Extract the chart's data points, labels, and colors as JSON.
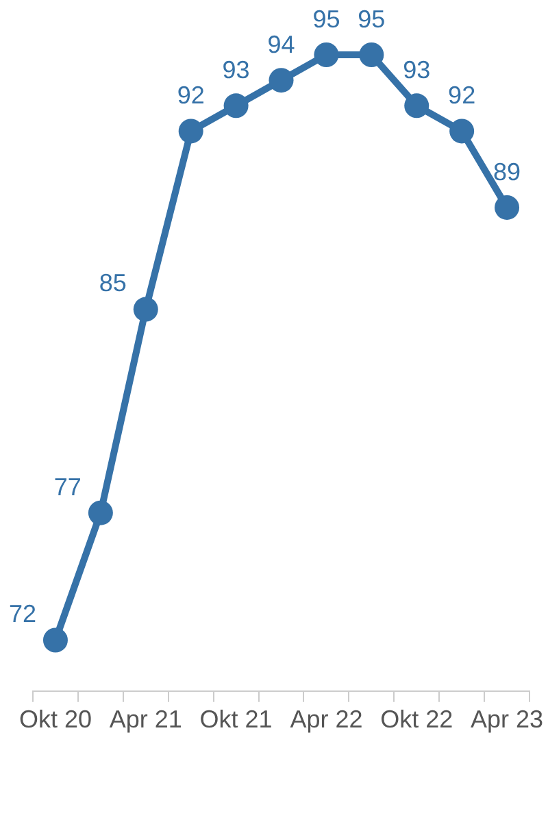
{
  "chart_data": {
    "type": "line",
    "categories": [
      "Okt 20",
      null,
      "Apr 21",
      null,
      "Okt 21",
      null,
      "Apr 22",
      null,
      "Okt 22",
      null,
      "Apr 23"
    ],
    "series": [
      {
        "color": "#3672a8",
        "values": [
          72,
          77,
          85,
          92,
          93,
          94,
          95,
          95,
          93,
          92,
          89
        ]
      }
    ],
    "data_labels": true,
    "marker": "circle",
    "line_style": "solid",
    "grid": false,
    "legend": false,
    "tick_labels": "x"
  }
}
